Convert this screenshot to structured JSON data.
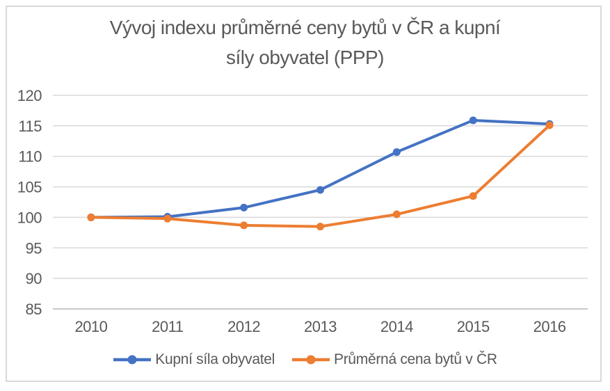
{
  "title": {
    "line1": "Vývoj indexu průměrné ceny bytů v ČR a kupní",
    "line2": "síly obyvatel (PPP)"
  },
  "chart_data": {
    "type": "line",
    "title": "Vývoj indexu průměrné ceny bytů v ČR a kupní síly obyvatel (PPP)",
    "categories": [
      "2010",
      "2011",
      "2012",
      "2013",
      "2014",
      "2015",
      "2016"
    ],
    "series": [
      {
        "name": "Kupní síla obyvatel",
        "color": "#4472C4",
        "marker": "circle",
        "values": [
          100,
          100.1,
          101.6,
          104.5,
          110.7,
          115.9,
          115.3
        ]
      },
      {
        "name": "Průměrná cena bytů v ČR",
        "color": "#ED7D31",
        "marker": "circle",
        "values": [
          100,
          99.8,
          98.7,
          98.5,
          100.5,
          103.5,
          115.1
        ]
      }
    ],
    "xlabel": "",
    "ylabel": "",
    "ylim": [
      85,
      120
    ],
    "yticks": [
      85,
      90,
      95,
      100,
      105,
      110,
      115,
      120
    ],
    "grid": true,
    "legend_position": "bottom",
    "styles": {
      "grid_color": "#D9D9D9",
      "axis_color": "#C9C9C9",
      "text_color": "#595959",
      "frame_border_color": "#D9D9D9",
      "background": "#FFFFFF"
    }
  }
}
